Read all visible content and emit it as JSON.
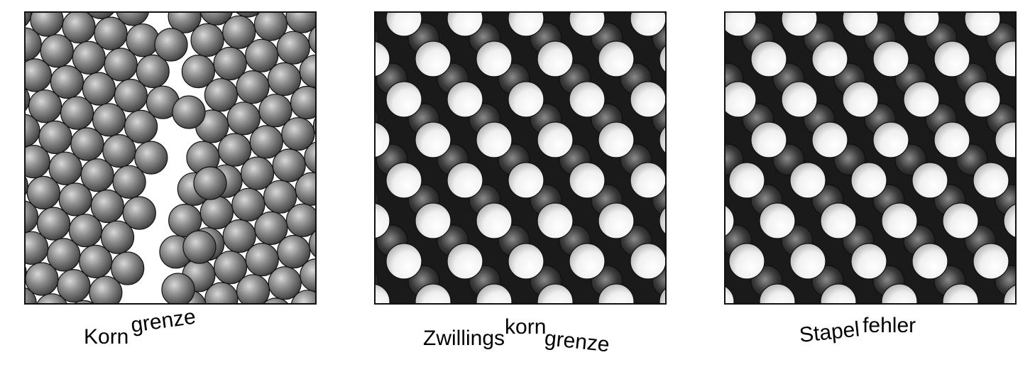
{
  "panels": [
    {
      "id": "korngrenze",
      "caption_parts": [
        "Korn",
        "grenze"
      ]
    },
    {
      "id": "zwillingskorngrenze",
      "caption_parts": [
        "Zwillings",
        "korn",
        "grenze"
      ]
    },
    {
      "id": "stapelfehler",
      "caption_parts": [
        "Stapel",
        "fehler"
      ]
    }
  ],
  "colors": {
    "gray_atom": "#8a8a8a",
    "white_atom": "#f2f2f2",
    "dark_atom": "#3a3a3a",
    "outline": "#111111"
  }
}
